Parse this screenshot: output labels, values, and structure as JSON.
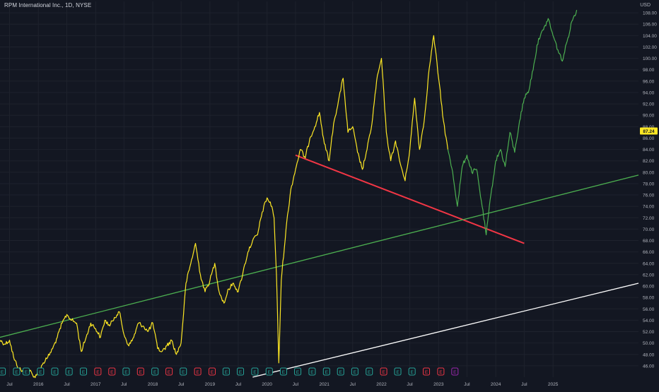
{
  "header": {
    "symbol_title": "RPM International Inc., 1D, NYSE",
    "currency": "USD"
  },
  "colors": {
    "background": "#131722",
    "price_yellow": "#fde724",
    "price_green": "#4caf50",
    "trend_red": "#f23645",
    "trend_green": "#4caf50",
    "trend_white": "#ffffff",
    "grid": "#1e222d",
    "axis_text": "#b2b5be",
    "last_price_badge": "#fde724",
    "earnings_green": "#26a69a",
    "earnings_red": "#f23645",
    "dividend_purple": "#9c27b0"
  },
  "chart_data": {
    "type": "line",
    "xlim": [
      "2015-05-01",
      "2026-07-01"
    ],
    "ylim": [
      44,
      110
    ],
    "grid": true,
    "y_ticks": [
      46,
      48,
      50,
      52,
      54,
      56,
      58,
      60,
      62,
      64,
      66,
      68,
      70,
      72,
      74,
      76,
      78,
      80,
      82,
      84,
      86,
      88,
      90,
      92,
      94,
      96,
      98,
      100,
      102,
      104,
      106,
      108
    ],
    "y_tick_labels": [
      "46.00",
      "48.00",
      "50.00",
      "52.00",
      "54.00",
      "56.00",
      "58.00",
      "60.00",
      "62.00",
      "64.00",
      "66.00",
      "68.00",
      "70.00",
      "72.00",
      "74.00",
      "76.00",
      "78.00",
      "80.00",
      "82.00",
      "84.00",
      "86.00",
      "88.00",
      "90.00",
      "92.00",
      "94.00",
      "96.00",
      "98.00",
      "100.00",
      "102.00",
      "104.00",
      "106.00",
      "108.00"
    ],
    "x_ticks": [
      {
        "date": "2015-07-01",
        "label": "Jul"
      },
      {
        "date": "2016-01-01",
        "label": "2016"
      },
      {
        "date": "2016-07-01",
        "label": "Jul"
      },
      {
        "date": "2017-01-01",
        "label": "2017"
      },
      {
        "date": "2017-07-01",
        "label": "Jul"
      },
      {
        "date": "2018-01-01",
        "label": "2018"
      },
      {
        "date": "2018-07-01",
        "label": "Jul"
      },
      {
        "date": "2019-01-01",
        "label": "2019"
      },
      {
        "date": "2019-07-01",
        "label": "Jul"
      },
      {
        "date": "2020-01-01",
        "label": "2020"
      },
      {
        "date": "2020-07-01",
        "label": "Jul"
      },
      {
        "date": "2021-01-01",
        "label": "2021"
      },
      {
        "date": "2021-07-01",
        "label": "Jul"
      },
      {
        "date": "2022-01-01",
        "label": "2022"
      },
      {
        "date": "2022-07-01",
        "label": "Jul"
      },
      {
        "date": "2023-01-01",
        "label": "2023"
      },
      {
        "date": "2023-07-01",
        "label": "Jul"
      },
      {
        "date": "2024-01-01",
        "label": "2024"
      },
      {
        "date": "2024-07-01",
        "label": "Jul"
      },
      {
        "date": "2025-01-01",
        "label": "2025"
      }
    ],
    "last_price": {
      "value": 87.24,
      "label": "87.24"
    },
    "series": [
      {
        "color": "#fde724",
        "points": [
          [
            "2015-05-01",
            50.5
          ],
          [
            "2015-06-01",
            49.8
          ],
          [
            "2015-07-01",
            50.5
          ],
          [
            "2015-08-01",
            47.0
          ],
          [
            "2015-09-01",
            45.5
          ],
          [
            "2015-10-01",
            44.8
          ],
          [
            "2015-11-01",
            45.5
          ],
          [
            "2015-12-01",
            44.0
          ],
          [
            "2016-01-01",
            44.8
          ],
          [
            "2016-02-01",
            46.5
          ],
          [
            "2016-03-01",
            47.5
          ],
          [
            "2016-04-01",
            49.0
          ],
          [
            "2016-05-01",
            51.0
          ],
          [
            "2016-06-01",
            53.5
          ],
          [
            "2016-07-01",
            55.0
          ],
          [
            "2016-08-01",
            54.0
          ],
          [
            "2016-09-01",
            53.5
          ],
          [
            "2016-10-01",
            48.5
          ],
          [
            "2016-11-01",
            51.0
          ],
          [
            "2016-12-01",
            53.5
          ],
          [
            "2017-01-01",
            52.5
          ],
          [
            "2017-02-01",
            51.0
          ],
          [
            "2017-03-01",
            54.0
          ],
          [
            "2017-04-01",
            53.0
          ],
          [
            "2017-05-01",
            54.5
          ],
          [
            "2017-06-01",
            55.5
          ],
          [
            "2017-07-01",
            51.5
          ],
          [
            "2017-08-01",
            49.5
          ],
          [
            "2017-09-01",
            51.0
          ],
          [
            "2017-10-01",
            53.5
          ],
          [
            "2017-11-01",
            53.0
          ],
          [
            "2017-12-01",
            52.0
          ],
          [
            "2018-01-01",
            53.5
          ],
          [
            "2018-02-01",
            49.0
          ],
          [
            "2018-03-01",
            48.5
          ],
          [
            "2018-04-01",
            49.5
          ],
          [
            "2018-05-01",
            50.5
          ],
          [
            "2018-06-01",
            48.0
          ],
          [
            "2018-07-01",
            50.0
          ],
          [
            "2018-08-01",
            60.5
          ],
          [
            "2018-09-01",
            64.0
          ],
          [
            "2018-10-01",
            67.5
          ],
          [
            "2018-11-01",
            62.0
          ],
          [
            "2018-12-01",
            59.0
          ],
          [
            "2019-01-01",
            61.0
          ],
          [
            "2019-02-01",
            64.0
          ],
          [
            "2019-03-01",
            59.0
          ],
          [
            "2019-04-01",
            57.0
          ],
          [
            "2019-05-01",
            59.5
          ],
          [
            "2019-06-01",
            60.5
          ],
          [
            "2019-07-01",
            59.0
          ],
          [
            "2019-08-01",
            62.5
          ],
          [
            "2019-09-01",
            66.0
          ],
          [
            "2019-10-01",
            68.0
          ],
          [
            "2019-11-01",
            69.0
          ],
          [
            "2019-12-01",
            73.0
          ],
          [
            "2020-01-01",
            75.5
          ],
          [
            "2020-02-01",
            74.0
          ],
          [
            "2020-02-15",
            72.0
          ],
          [
            "2020-03-01",
            62.0
          ],
          [
            "2020-03-16",
            46.5
          ],
          [
            "2020-04-01",
            61.0
          ],
          [
            "2020-05-01",
            70.0
          ],
          [
            "2020-06-01",
            77.0
          ],
          [
            "2020-07-01",
            80.5
          ],
          [
            "2020-08-01",
            84.0
          ],
          [
            "2020-09-01",
            82.5
          ],
          [
            "2020-10-01",
            86.0
          ],
          [
            "2020-11-01",
            88.0
          ],
          [
            "2020-12-01",
            90.5
          ],
          [
            "2021-01-01",
            85.0
          ],
          [
            "2021-02-01",
            82.0
          ],
          [
            "2021-03-01",
            88.5
          ],
          [
            "2021-04-01",
            92.5
          ],
          [
            "2021-05-01",
            96.5
          ],
          [
            "2021-06-01",
            87.0
          ],
          [
            "2021-07-01",
            88.0
          ],
          [
            "2021-08-01",
            83.5
          ],
          [
            "2021-09-01",
            80.5
          ],
          [
            "2021-10-01",
            84.0
          ],
          [
            "2021-11-01",
            88.5
          ],
          [
            "2021-12-01",
            96.0
          ],
          [
            "2022-01-01",
            100.0
          ],
          [
            "2022-02-01",
            87.0
          ],
          [
            "2022-03-01",
            82.0
          ],
          [
            "2022-04-01",
            85.5
          ],
          [
            "2022-05-01",
            81.5
          ],
          [
            "2022-06-01",
            78.5
          ],
          [
            "2022-07-01",
            84.0
          ],
          [
            "2022-08-01",
            93.0
          ],
          [
            "2022-09-01",
            84.0
          ],
          [
            "2022-10-01",
            89.0
          ],
          [
            "2022-11-01",
            98.0
          ],
          [
            "2022-12-01",
            104.0
          ],
          [
            "2023-01-01",
            96.5
          ],
          [
            "2023-02-01",
            89.0
          ],
          [
            "2023-03-01",
            84.0
          ]
        ]
      },
      {
        "color": "#4caf50",
        "points": [
          [
            "2023-03-01",
            84.0
          ],
          [
            "2023-04-01",
            80.0
          ],
          [
            "2023-05-01",
            74.0
          ],
          [
            "2023-06-01",
            81.0
          ],
          [
            "2023-07-01",
            83.0
          ],
          [
            "2023-08-01",
            80.0
          ],
          [
            "2023-09-01",
            80.5
          ],
          [
            "2023-10-01",
            75.0
          ],
          [
            "2023-11-01",
            69.0
          ],
          [
            "2023-12-01",
            76.0
          ],
          [
            "2024-01-01",
            82.0
          ],
          [
            "2024-02-01",
            84.0
          ],
          [
            "2024-03-01",
            81.0
          ],
          [
            "2024-04-01",
            87.0
          ],
          [
            "2024-05-01",
            83.5
          ],
          [
            "2024-06-01",
            89.0
          ],
          [
            "2024-07-01",
            93.0
          ],
          [
            "2024-08-01",
            94.5
          ],
          [
            "2024-09-01",
            99.0
          ],
          [
            "2024-10-01",
            103.5
          ],
          [
            "2024-11-01",
            105.0
          ],
          [
            "2024-12-01",
            107.0
          ],
          [
            "2025-01-01",
            104.0
          ],
          [
            "2025-02-01",
            101.5
          ],
          [
            "2025-03-01",
            99.5
          ],
          [
            "2025-04-01",
            103.0
          ],
          [
            "2025-05-01",
            106.5
          ],
          [
            "2025-06-01",
            108.5
          ]
        ]
      }
    ],
    "trend_lines": [
      {
        "color": "#f23645",
        "start": [
          "2020-07-01",
          83.0
        ],
        "end": [
          "2024-07-01",
          67.5
        ]
      },
      {
        "color": "#4caf50",
        "start": [
          "2015-05-01",
          51.0
        ],
        "end": [
          "2026-07-01",
          79.5
        ]
      },
      {
        "color": "#ffffff",
        "start": [
          "2019-10-01",
          44.0
        ],
        "end": [
          "2026-07-01",
          60.5
        ]
      }
    ],
    "event_markers": [
      {
        "date": "2015-05-15",
        "kind": "E",
        "color": "#26a69a"
      },
      {
        "date": "2015-08-15",
        "kind": "E",
        "color": "#26a69a"
      },
      {
        "date": "2015-10-15",
        "kind": "E",
        "color": "#26a69a"
      },
      {
        "date": "2016-01-15",
        "kind": "E",
        "color": "#26a69a"
      },
      {
        "date": "2016-04-15",
        "kind": "E",
        "color": "#26a69a"
      },
      {
        "date": "2016-07-15",
        "kind": "E",
        "color": "#26a69a"
      },
      {
        "date": "2016-10-15",
        "kind": "E",
        "color": "#26a69a"
      },
      {
        "date": "2017-01-15",
        "kind": "E",
        "color": "#f23645"
      },
      {
        "date": "2017-04-15",
        "kind": "E",
        "color": "#f23645"
      },
      {
        "date": "2017-07-15",
        "kind": "E",
        "color": "#26a69a"
      },
      {
        "date": "2017-10-15",
        "kind": "E",
        "color": "#f23645"
      },
      {
        "date": "2018-01-15",
        "kind": "E",
        "color": "#26a69a"
      },
      {
        "date": "2018-04-15",
        "kind": "E",
        "color": "#f23645"
      },
      {
        "date": "2018-07-15",
        "kind": "E",
        "color": "#26a69a"
      },
      {
        "date": "2018-10-15",
        "kind": "E",
        "color": "#f23645"
      },
      {
        "date": "2019-01-15",
        "kind": "E",
        "color": "#f23645"
      },
      {
        "date": "2019-04-15",
        "kind": "E",
        "color": "#26a69a"
      },
      {
        "date": "2019-07-15",
        "kind": "E",
        "color": "#26a69a"
      },
      {
        "date": "2019-10-15",
        "kind": "E",
        "color": "#26a69a"
      },
      {
        "date": "2020-01-15",
        "kind": "E",
        "color": "#26a69a"
      },
      {
        "date": "2020-04-15",
        "kind": "E",
        "color": "#26a69a"
      },
      {
        "date": "2020-07-15",
        "kind": "E",
        "color": "#26a69a"
      },
      {
        "date": "2020-10-15",
        "kind": "E",
        "color": "#26a69a"
      },
      {
        "date": "2021-01-15",
        "kind": "E",
        "color": "#26a69a"
      },
      {
        "date": "2021-04-15",
        "kind": "E",
        "color": "#26a69a"
      },
      {
        "date": "2021-07-15",
        "kind": "E",
        "color": "#26a69a"
      },
      {
        "date": "2021-10-15",
        "kind": "E",
        "color": "#26a69a"
      },
      {
        "date": "2022-01-15",
        "kind": "E",
        "color": "#f23645"
      },
      {
        "date": "2022-04-15",
        "kind": "E",
        "color": "#26a69a"
      },
      {
        "date": "2022-07-15",
        "kind": "E",
        "color": "#26a69a"
      },
      {
        "date": "2022-10-15",
        "kind": "E",
        "color": "#f23645"
      },
      {
        "date": "2023-01-15",
        "kind": "E",
        "color": "#f23645"
      },
      {
        "date": "2023-04-15",
        "kind": "E",
        "color": "#9c27b0"
      }
    ]
  }
}
